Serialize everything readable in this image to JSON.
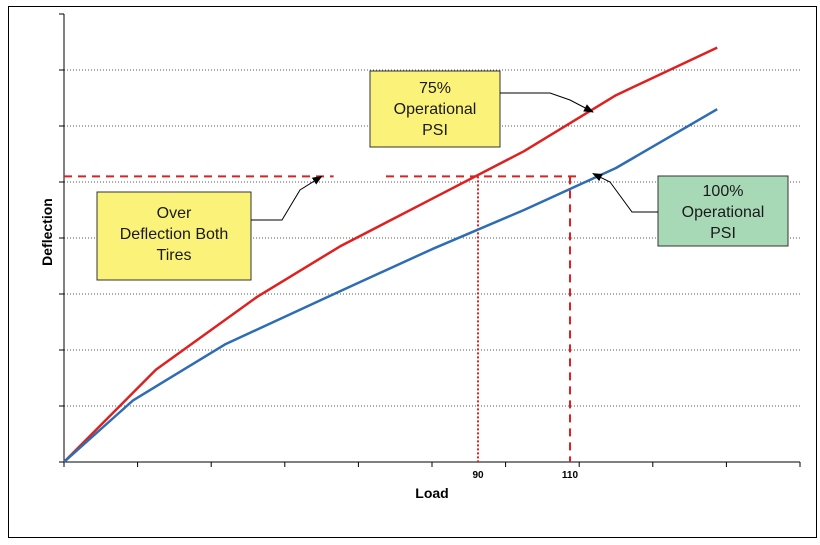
{
  "chart_data": {
    "type": "line",
    "title": "",
    "xlabel": "Load",
    "ylabel": "Deflection",
    "xlim": [
      0,
      160
    ],
    "ylim": [
      0,
      8
    ],
    "grid": "horizontal dotted",
    "legend": "none",
    "x_tick_labels": [
      {
        "x": 90,
        "label": "90"
      },
      {
        "x": 110,
        "label": "110"
      }
    ],
    "series": [
      {
        "id": "psi75",
        "color": "#e02020",
        "points": [
          [
            0,
            0
          ],
          [
            20,
            1.65
          ],
          [
            42,
            2.95
          ],
          [
            60,
            3.85
          ],
          [
            80,
            4.7
          ],
          [
            100,
            5.55
          ],
          [
            120,
            6.55
          ],
          [
            142,
            7.4
          ]
        ]
      },
      {
        "id": "psi100",
        "color": "#2e6db4",
        "points": [
          [
            0,
            0
          ],
          [
            15,
            1.1
          ],
          [
            35,
            2.1
          ],
          [
            60,
            3.05
          ],
          [
            80,
            3.8
          ],
          [
            100,
            4.5
          ],
          [
            120,
            5.25
          ],
          [
            142,
            6.3
          ]
        ]
      }
    ],
    "reference_lines": {
      "color": "#e02020",
      "over_deflection_y": 5.1,
      "horizontal_x_range": [
        0,
        56
      ],
      "vertical_dashed_x": 110,
      "vertical_dotted_x": 90
    },
    "annotations": [
      {
        "id": "over",
        "lines": [
          "Over",
          "Deflection Both",
          "Tires"
        ],
        "fill": "#fbf27a",
        "arrow_to": [
          56,
          5.1
        ]
      },
      {
        "id": "psi75",
        "lines": [
          "75%",
          "Operational",
          "PSI"
        ],
        "fill": "#fbf27a",
        "arrow_to": [
          115,
          6.25
        ]
      },
      {
        "id": "psi100",
        "lines": [
          "100%",
          "Operational",
          "PSI"
        ],
        "fill": "#a8d9b6",
        "arrow_to": [
          115,
          5.15
        ]
      }
    ]
  }
}
